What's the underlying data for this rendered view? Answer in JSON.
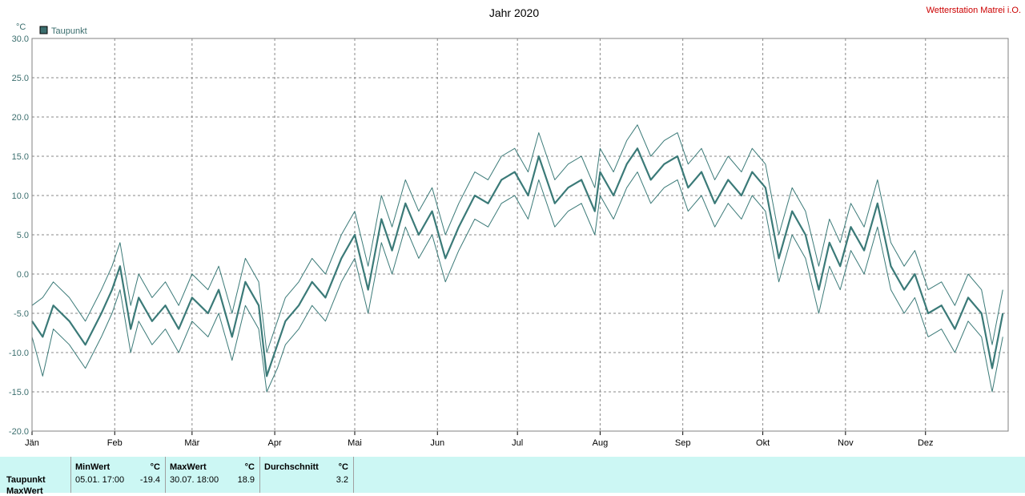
{
  "title": "Jahr 2020",
  "station": "Wetterstation Matrei i.O.",
  "chart_data": {
    "type": "line",
    "unit": "°C",
    "ylim": [
      -20,
      30
    ],
    "yticks": [
      "30.0",
      "25.0",
      "20.0",
      "15.0",
      "10.0",
      "5.0",
      "0.0",
      "-5.0",
      "-10.0",
      "-15.0",
      "-20.0"
    ],
    "xticks": [
      "Jän",
      "Feb",
      "Mär",
      "Apr",
      "Mai",
      "Jun",
      "Jul",
      "Aug",
      "Sep",
      "Okt",
      "Nov",
      "Dez"
    ],
    "grid": true,
    "legend": "top-left",
    "series": [
      {
        "name": "Taupunkt",
        "color": "#3b7a78",
        "days": [
          0,
          4,
          8,
          14,
          20,
          26,
          30,
          33,
          37,
          40,
          45,
          50,
          55,
          60,
          66,
          70,
          75,
          80,
          85,
          88,
          92,
          95,
          100,
          105,
          110,
          116,
          121,
          126,
          131,
          135,
          140,
          145,
          150,
          155,
          160,
          166,
          171,
          176,
          181,
          186,
          190,
          196,
          201,
          206,
          211,
          213,
          218,
          223,
          227,
          232,
          237,
          242,
          246,
          251,
          256,
          261,
          266,
          270,
          275,
          280,
          285,
          290,
          295,
          299,
          303,
          307,
          312,
          317,
          322,
          327,
          331,
          336,
          341,
          346,
          351,
          356,
          360,
          364
        ],
        "values": [
          -6,
          -8,
          -4,
          -6,
          -9,
          -5,
          -2,
          1,
          -7,
          -3,
          -6,
          -4,
          -7,
          -3,
          -5,
          -2,
          -8,
          -1,
          -4,
          -13,
          -9,
          -6,
          -4,
          -1,
          -3,
          2,
          5,
          -2,
          7,
          3,
          9,
          5,
          8,
          2,
          6,
          10,
          9,
          12,
          13,
          10,
          15,
          9,
          11,
          12,
          8,
          13,
          10,
          14,
          16,
          12,
          14,
          15,
          11,
          13,
          9,
          12,
          10,
          13,
          11,
          2,
          8,
          5,
          -2,
          4,
          1,
          6,
          3,
          9,
          1,
          -2,
          0,
          -5,
          -4,
          -7,
          -3,
          -5,
          -12,
          -5
        ],
        "upper": [
          -4,
          -3,
          -1,
          -3,
          -6,
          -2,
          1,
          4,
          -4,
          0,
          -3,
          -1,
          -4,
          0,
          -2,
          1,
          -5,
          2,
          -1,
          -10,
          -6,
          -3,
          -1,
          2,
          0,
          5,
          8,
          1,
          10,
          6,
          12,
          8,
          11,
          5,
          9,
          13,
          12,
          15,
          16,
          13,
          18,
          12,
          14,
          15,
          11,
          16,
          13,
          17,
          19,
          15,
          17,
          18,
          14,
          16,
          12,
          15,
          13,
          16,
          14,
          5,
          11,
          8,
          1,
          7,
          4,
          9,
          6,
          12,
          4,
          1,
          3,
          -2,
          -1,
          -4,
          0,
          -2,
          -9,
          -2
        ],
        "lower": [
          -8,
          -13,
          -7,
          -9,
          -12,
          -8,
          -5,
          -2,
          -10,
          -6,
          -9,
          -7,
          -10,
          -6,
          -8,
          -5,
          -11,
          -4,
          -7,
          -15,
          -12,
          -9,
          -7,
          -4,
          -6,
          -1,
          2,
          -5,
          4,
          0,
          6,
          2,
          5,
          -1,
          3,
          7,
          6,
          9,
          10,
          7,
          12,
          6,
          8,
          9,
          5,
          10,
          7,
          11,
          13,
          9,
          11,
          12,
          8,
          10,
          6,
          9,
          7,
          10,
          8,
          -1,
          5,
          2,
          -5,
          1,
          -2,
          3,
          0,
          6,
          -2,
          -5,
          -3,
          -8,
          -7,
          -10,
          -6,
          -8,
          -15,
          -8
        ]
      }
    ]
  },
  "stats": {
    "row_label": "Taupunkt",
    "row_label2": "MaxWert",
    "min_header": "MinWert",
    "max_header": "MaxWert",
    "avg_header": "Durchschnitt",
    "unit": "°C",
    "min_time": "05.01.  17:00",
    "min_value": "-19.4",
    "max_time": "30.07.  18:00",
    "max_value": "18.9",
    "avg_value": "3.2"
  }
}
